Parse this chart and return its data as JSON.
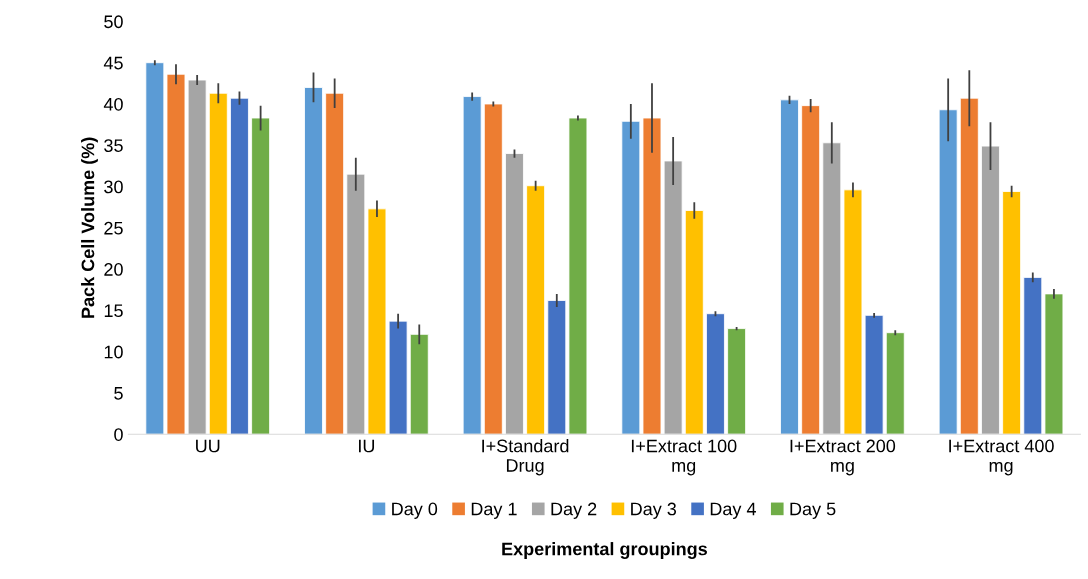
{
  "chart_data": {
    "type": "bar",
    "xlabel": "Experimental groupings",
    "ylabel": "Pack Cell Volume (%)",
    "categories": [
      "UU",
      "IU",
      "I+Standard\nDrug",
      "I+Extract 100\nmg",
      "I+Extract 200\nmg",
      "I+Extract 400\nmg"
    ],
    "series": [
      {
        "name": "Day 0",
        "color": "#5b9bd5",
        "values": [
          45.0,
          42.0,
          40.9,
          37.9,
          40.5,
          39.3
        ],
        "errors": [
          0.3,
          1.8,
          0.5,
          2.1,
          0.5,
          3.8
        ]
      },
      {
        "name": "Day 1",
        "color": "#ed7d31",
        "values": [
          43.6,
          41.3,
          40.0,
          38.3,
          39.8,
          40.7
        ],
        "errors": [
          1.2,
          1.8,
          0.3,
          4.2,
          0.8,
          3.4
        ]
      },
      {
        "name": "Day 2",
        "color": "#a5a5a5",
        "values": [
          42.9,
          31.5,
          34.0,
          33.1,
          35.3,
          34.9
        ],
        "errors": [
          0.6,
          2.0,
          0.5,
          2.9,
          2.5,
          2.9
        ]
      },
      {
        "name": "Day 3",
        "color": "#ffc000",
        "values": [
          41.3,
          27.3,
          30.1,
          27.1,
          29.6,
          29.4
        ],
        "errors": [
          1.2,
          1.0,
          0.6,
          1.0,
          0.9,
          0.7
        ]
      },
      {
        "name": "Day 4",
        "color": "#4472c4",
        "values": [
          40.7,
          13.7,
          16.2,
          14.6,
          14.4,
          19.0
        ],
        "errors": [
          0.8,
          0.9,
          0.8,
          0.3,
          0.3,
          0.6
        ]
      },
      {
        "name": "Day 5",
        "color": "#70ad47",
        "values": [
          38.3,
          12.1,
          38.3,
          12.8,
          12.3,
          17.0
        ],
        "errors": [
          1.5,
          1.2,
          0.3,
          0.2,
          0.3,
          0.6
        ]
      }
    ],
    "ylim": [
      0,
      50
    ],
    "yticks": [
      0,
      5,
      10,
      15,
      20,
      25,
      30,
      35,
      40,
      45,
      50
    ],
    "grid": false,
    "legend": "bottom"
  }
}
